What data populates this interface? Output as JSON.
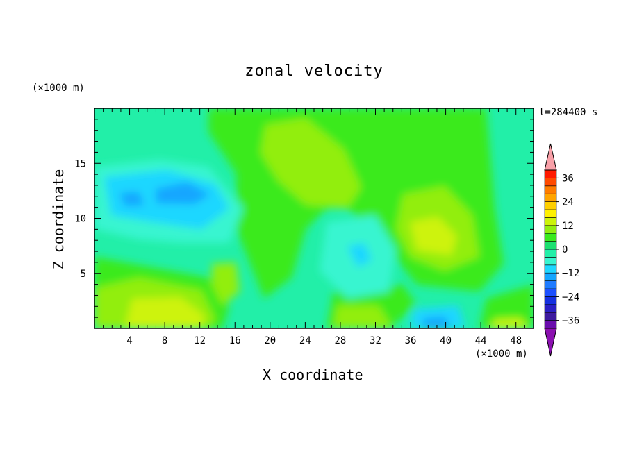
{
  "title": "zonal velocity",
  "annotation_time": "t=284400 s",
  "chart_data": {
    "type": "heatmap",
    "title": "zonal velocity",
    "xlabel": "X coordinate",
    "ylabel": "Z coordinate",
    "x_unit": "(×1000 m)",
    "y_unit": "(×1000 m)",
    "xlim": [
      0,
      50
    ],
    "ylim": [
      0,
      20
    ],
    "x_ticks": [
      "4",
      "8",
      "12",
      "16",
      "20",
      "24",
      "28",
      "32",
      "36",
      "40",
      "44",
      "48"
    ],
    "y_ticks": [
      "5",
      "10",
      "15"
    ],
    "colorbar": {
      "labels": [
        "36",
        "24",
        "12",
        "0",
        "-12",
        "-24",
        "-36"
      ],
      "levels": [
        -40,
        -36,
        -32,
        -28,
        -24,
        -20,
        -16,
        -12,
        -8,
        -4,
        0,
        4,
        8,
        12,
        16,
        20,
        24,
        28,
        32,
        36,
        40
      ],
      "colors": [
        "#6a0dad",
        "#3d1a9e",
        "#2a1fc4",
        "#1530e0",
        "#1c50ff",
        "#1f7bff",
        "#14a6ff",
        "#1ed7ff",
        "#38f5d0",
        "#22efa8",
        "#1de070",
        "#3aea1e",
        "#92ee11",
        "#cdf30a",
        "#fff000",
        "#ffcf00",
        "#ffa400",
        "#ff7c00",
        "#ff4a00",
        "#ff1a00"
      ],
      "extend_low_color": "#8b10b0",
      "extend_high_color": "#f8a0a8"
    },
    "field_summary": [
      {
        "x": 9.5,
        "z": 1.5,
        "value": 14,
        "desc": "positive near bottom"
      },
      {
        "x": 38.5,
        "z": 8.5,
        "value": 12,
        "desc": "positive core"
      },
      {
        "x": 26,
        "z": 15,
        "value": 5,
        "desc": "positive upper"
      },
      {
        "x": 10,
        "z": 12,
        "value": -17,
        "desc": "negative core"
      },
      {
        "x": 5,
        "z": 12,
        "value": -16,
        "desc": "negative core"
      },
      {
        "x": 30,
        "z": 6.5,
        "value": -12,
        "desc": "negative middle"
      },
      {
        "x": 39.5,
        "z": 0.5,
        "value": -18,
        "desc": "negative bottom"
      }
    ]
  }
}
